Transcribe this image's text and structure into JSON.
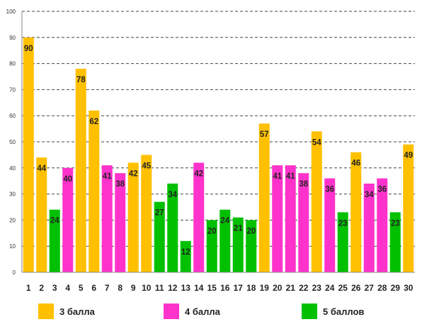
{
  "chart_data": {
    "type": "bar",
    "title": "",
    "xlabel": "",
    "ylabel": "",
    "ylim": [
      0,
      100
    ],
    "yticks": [
      0,
      10,
      20,
      30,
      40,
      50,
      60,
      70,
      80,
      90,
      100
    ],
    "grid": true,
    "legend_position": "bottom",
    "categories": [
      "1",
      "2",
      "3",
      "4",
      "5",
      "6",
      "7",
      "8",
      "9",
      "10",
      "11",
      "12",
      "13",
      "14",
      "15",
      "16",
      "17",
      "18",
      "19",
      "20",
      "21",
      "22",
      "23",
      "24",
      "25",
      "26",
      "27",
      "28",
      "29",
      "30"
    ],
    "values": [
      90,
      44,
      24,
      40,
      78,
      62,
      41,
      38,
      42,
      45,
      27,
      34,
      12,
      42,
      20,
      24,
      21,
      20,
      57,
      41,
      41,
      38,
      54,
      36,
      23,
      46,
      34,
      36,
      23,
      49
    ],
    "bar_group": [
      0,
      0,
      2,
      1,
      0,
      0,
      1,
      1,
      0,
      0,
      2,
      2,
      2,
      1,
      2,
      2,
      2,
      2,
      0,
      1,
      1,
      1,
      0,
      1,
      2,
      0,
      1,
      1,
      2,
      0
    ],
    "series": [
      {
        "name": "3 балла",
        "color": "#FFC000"
      },
      {
        "name": "4 балла",
        "color": "#FF33CC"
      },
      {
        "name": "5 баллов",
        "color": "#00C000"
      }
    ]
  }
}
